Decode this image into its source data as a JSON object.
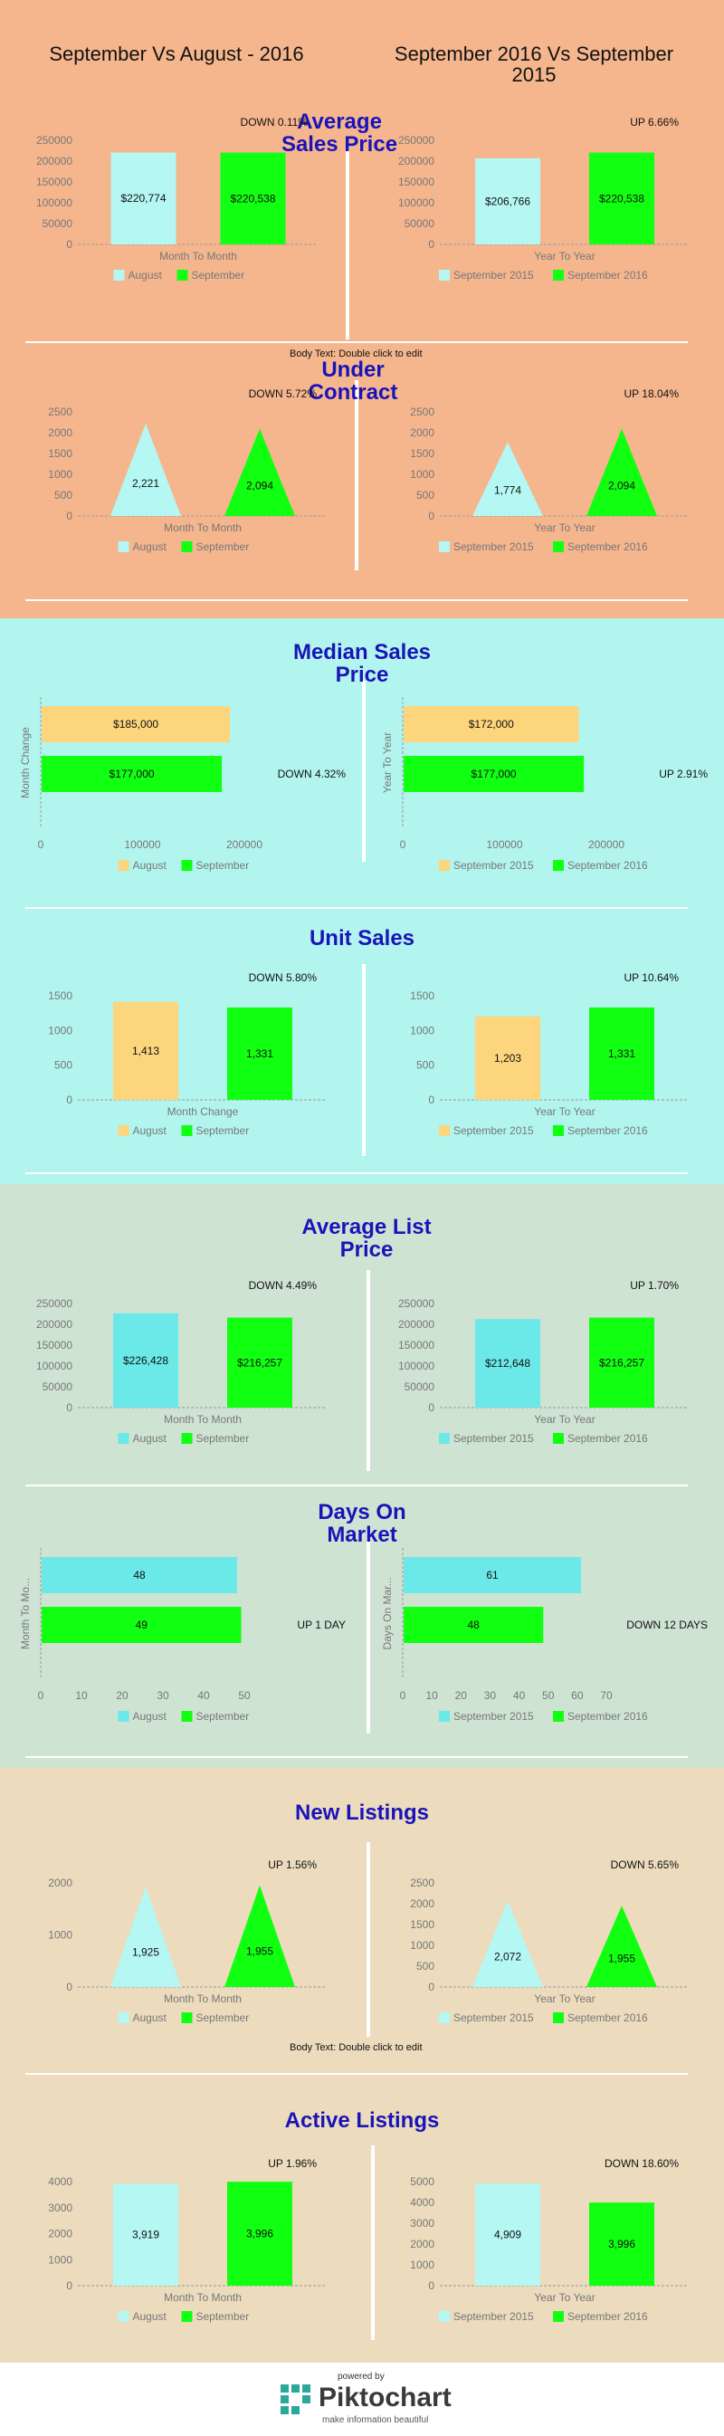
{
  "header": {
    "left_title": "September Vs August - 2016",
    "right_title": "September 2016 Vs September 2015"
  },
  "colors": {
    "band_peach": "#f5b68e",
    "band_cyan": "#b2f5ef",
    "band_sage": "#cfe3d3",
    "band_tan": "#ecdcbd",
    "title_blue": "#1a14b8",
    "light_cyan": "#b4f7f3",
    "cyan": "#6ae9e8",
    "green": "#11ff11",
    "yellow": "#fcd57c"
  },
  "body_text_placeholder": "Body Text: Double click to edit",
  "charts": [
    {
      "section_title": "Average Sales Price",
      "left": {
        "change": "DOWN  0.11%",
        "kind": "vbar",
        "xlabel": "Month To Month",
        "ticks": [
          "250000",
          "200000",
          "150000",
          "100000",
          "50000",
          "0"
        ],
        "ymax": 250000,
        "values": [
          220774,
          220538
        ],
        "labels": [
          "$220,774",
          "$220,538"
        ],
        "legend": [
          "August",
          "September"
        ],
        "colors": [
          "#b4f7f3",
          "#11ff11"
        ]
      },
      "right": {
        "change": "UP 6.66%",
        "kind": "vbar",
        "xlabel": "Year To Year",
        "ticks": [
          "250000",
          "200000",
          "150000",
          "100000",
          "50000",
          "0"
        ],
        "ymax": 250000,
        "values": [
          206766,
          220538
        ],
        "labels": [
          "$206,766",
          "$220,538"
        ],
        "legend": [
          "September 2015",
          "September 2016"
        ],
        "colors": [
          "#b4f7f3",
          "#11ff11"
        ]
      }
    },
    {
      "section_title": "Under Contract",
      "left": {
        "change": "DOWN 5.72%",
        "kind": "tri",
        "xlabel": "Month To Month",
        "ticks": [
          "2500",
          "2000",
          "1500",
          "1000",
          "500",
          "0"
        ],
        "ymax": 2500,
        "values": [
          2221,
          2094
        ],
        "labels": [
          "2,221",
          "2,094"
        ],
        "legend": [
          "August",
          "September"
        ],
        "colors": [
          "#b4f7f3",
          "#11ff11"
        ]
      },
      "right": {
        "change": "UP 18.04%",
        "kind": "tri",
        "xlabel": "Year To Year",
        "ticks": [
          "2500",
          "2000",
          "1500",
          "1000",
          "500",
          "0"
        ],
        "ymax": 2500,
        "values": [
          1774,
          2094
        ],
        "labels": [
          "1,774",
          "2,094"
        ],
        "legend": [
          "September 2015",
          "September 2016"
        ],
        "colors": [
          "#b4f7f3",
          "#11ff11"
        ]
      }
    },
    {
      "section_title": "Median Sales Price",
      "left": {
        "change": "DOWN 4.32%",
        "kind": "hbar",
        "axis_label": "Month Change",
        "ticks": [
          "0",
          "100000",
          "200000"
        ],
        "xmax": 200000,
        "values": [
          185000,
          177000
        ],
        "labels": [
          "$185,000",
          "$177,000"
        ],
        "legend": [
          "August",
          "September"
        ],
        "colors": [
          "#fcd57c",
          "#11ff11"
        ]
      },
      "right": {
        "change": "UP 2.91%",
        "kind": "hbar",
        "axis_label": "Year To Year",
        "ticks": [
          "0",
          "100000",
          "200000"
        ],
        "xmax": 200000,
        "values": [
          172000,
          177000
        ],
        "labels": [
          "$172,000",
          "$177,000"
        ],
        "legend": [
          "September 2015",
          "September 2016"
        ],
        "colors": [
          "#fcd57c",
          "#11ff11"
        ]
      }
    },
    {
      "section_title": "Unit Sales",
      "left": {
        "change": "DOWN 5.80%",
        "kind": "vbar",
        "xlabel": "Month Change",
        "ticks": [
          "1500",
          "1000",
          "500",
          "0"
        ],
        "ymax": 1500,
        "values": [
          1413,
          1331
        ],
        "labels": [
          "1,413",
          "1,331"
        ],
        "legend": [
          "August",
          "September"
        ],
        "colors": [
          "#fcd57c",
          "#11ff11"
        ]
      },
      "right": {
        "change": "UP 10.64%",
        "kind": "vbar",
        "xlabel": "Year To Year",
        "ticks": [
          "1500",
          "1000",
          "500",
          "0"
        ],
        "ymax": 1500,
        "values": [
          1203,
          1331
        ],
        "labels": [
          "1,203",
          "1,331"
        ],
        "legend": [
          "September 2015",
          "September 2016"
        ],
        "colors": [
          "#fcd57c",
          "#11ff11"
        ]
      }
    },
    {
      "section_title": "Average List Price",
      "left": {
        "change": "DOWN 4.49%",
        "kind": "vbar",
        "xlabel": "Month To Month",
        "ticks": [
          "250000",
          "200000",
          "150000",
          "100000",
          "50000",
          "0"
        ],
        "ymax": 250000,
        "values": [
          226428,
          216257
        ],
        "labels": [
          "$226,428",
          "$216,257"
        ],
        "legend": [
          "August",
          "September"
        ],
        "colors": [
          "#6ae9e8",
          "#11ff11"
        ]
      },
      "right": {
        "change": "UP 1.70%",
        "kind": "vbar",
        "xlabel": "Year To Year",
        "ticks": [
          "250000",
          "200000",
          "150000",
          "100000",
          "50000",
          "0"
        ],
        "ymax": 250000,
        "values": [
          212648,
          216257
        ],
        "labels": [
          "$212,648",
          "$216,257"
        ],
        "legend": [
          "September 2015",
          "September 2016"
        ],
        "colors": [
          "#6ae9e8",
          "#11ff11"
        ]
      }
    },
    {
      "section_title": "Days On Market",
      "left": {
        "change": "UP 1 DAY",
        "kind": "hbar",
        "axis_label": "Month To Mo...",
        "ticks": [
          "0",
          "10",
          "20",
          "30",
          "40",
          "50"
        ],
        "xmax": 50,
        "values": [
          48,
          49
        ],
        "labels": [
          "48",
          "49"
        ],
        "legend": [
          "August",
          "September"
        ],
        "colors": [
          "#6ae9e8",
          "#11ff11"
        ]
      },
      "right": {
        "change": "DOWN 12 DAYS",
        "kind": "hbar",
        "axis_label": "Days On Mar...",
        "ticks": [
          "0",
          "10",
          "20",
          "30",
          "40",
          "50",
          "60",
          "70"
        ],
        "xmax": 70,
        "values": [
          61,
          48
        ],
        "labels": [
          "61",
          "48"
        ],
        "legend": [
          "September 2015",
          "September 2016"
        ],
        "colors": [
          "#6ae9e8",
          "#11ff11"
        ]
      }
    },
    {
      "section_title": "New Listings",
      "left": {
        "change": "UP 1.56%",
        "kind": "tri",
        "xlabel": "Month To Month",
        "ticks": [
          "2000",
          "1000",
          "0"
        ],
        "ymax": 2000,
        "values": [
          1925,
          1955
        ],
        "labels": [
          "1,925",
          "1,955"
        ],
        "legend": [
          "August",
          "September"
        ],
        "colors": [
          "#b4f7f3",
          "#11ff11"
        ]
      },
      "right": {
        "change": "DOWN 5.65%",
        "kind": "tri",
        "xlabel": "Year To Year",
        "ticks": [
          "2500",
          "2000",
          "1500",
          "1000",
          "500",
          "0"
        ],
        "ymax": 2500,
        "values": [
          2072,
          1955
        ],
        "labels": [
          "2,072",
          "1,955"
        ],
        "legend": [
          "September 2015",
          "September 2016"
        ],
        "colors": [
          "#b4f7f3",
          "#11ff11"
        ]
      }
    },
    {
      "section_title": "Active Listings",
      "left": {
        "change": "UP 1.96%",
        "kind": "vbar",
        "xlabel": "Month To Month",
        "ticks": [
          "4000",
          "3000",
          "2000",
          "1000",
          "0"
        ],
        "ymax": 4000,
        "values": [
          3919,
          3996
        ],
        "labels": [
          "3,919",
          "3,996"
        ],
        "legend": [
          "August",
          "September"
        ],
        "colors": [
          "#b4f7f3",
          "#11ff11"
        ]
      },
      "right": {
        "change": "DOWN 18.60%",
        "kind": "vbar",
        "xlabel": "Year To Year",
        "ticks": [
          "5000",
          "4000",
          "3000",
          "2000",
          "1000",
          "0"
        ],
        "ymax": 5000,
        "values": [
          4909,
          3996
        ],
        "labels": [
          "4,909",
          "3,996"
        ],
        "legend": [
          "September 2015",
          "September 2016"
        ],
        "colors": [
          "#b4f7f3",
          "#11ff11"
        ]
      }
    }
  ],
  "footer": {
    "powered_by": "powered by",
    "brand": "Piktochart",
    "tagline": "make information beautiful"
  }
}
